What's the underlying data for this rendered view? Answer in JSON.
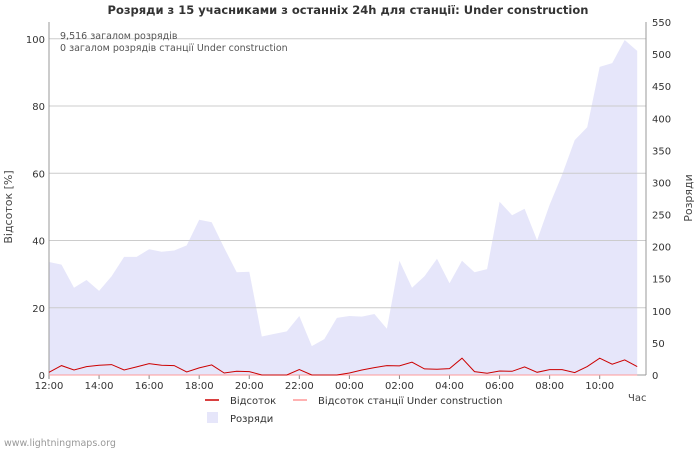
{
  "chart_data": {
    "type": "area+line",
    "title": "Розряди з 15 учасниками з останніх 24h для станції: Under construction",
    "annotations": [
      "9,516 загалом розрядів",
      "0 загалом розрядів станції Under construction"
    ],
    "ylabel_left": "Відсоток  [%]",
    "ylabel_right": "Розряди",
    "xlabel": "Час",
    "ylim_left": [
      0,
      105
    ],
    "ylim_right": [
      0,
      550
    ],
    "left_ticks": [
      "0",
      "20",
      "40",
      "60",
      "80",
      "100"
    ],
    "right_ticks": [
      "0",
      "50",
      "100",
      "150",
      "200",
      "250",
      "300",
      "350",
      "400",
      "450",
      "500",
      "550"
    ],
    "x_ticks": [
      "12:00",
      "14:00",
      "16:00",
      "18:00",
      "20:00",
      "22:00",
      "00:00",
      "02:00",
      "04:00",
      "06:00",
      "08:00",
      "10:00"
    ],
    "x_hours": [
      0,
      0.5,
      1,
      1.5,
      2,
      2.5,
      3,
      3.5,
      4,
      4.5,
      5,
      5.5,
      6,
      6.5,
      7,
      7.5,
      8,
      8.5,
      9,
      9.5,
      10,
      10.5,
      11,
      11.5,
      12,
      12.5,
      13,
      13.5,
      14,
      14.5,
      15,
      15.5,
      16,
      16.5,
      17,
      17.5,
      18,
      18.5,
      19,
      19.5,
      20,
      20.5,
      21,
      21.5,
      22,
      22.5,
      23,
      23.5
    ],
    "series": [
      {
        "name": "Розряди",
        "axis": "right",
        "style": "area",
        "color": "#e6e6fa",
        "values": [
          176,
          172,
          136,
          148,
          131,
          154,
          184,
          184,
          196,
          192,
          194,
          202,
          242,
          238,
          198,
          160,
          161,
          60,
          64,
          68,
          92,
          45,
          56,
          89,
          92,
          91,
          95,
          72,
          178,
          136,
          154,
          181,
          143,
          178,
          160,
          165,
          270,
          249,
          259,
          210,
          265,
          312,
          366,
          386,
          480,
          486,
          522,
          505
        ]
      },
      {
        "name": "Відсоток",
        "axis": "left",
        "style": "line",
        "color": "#cc0000",
        "values": [
          0.8,
          2.8,
          1.5,
          2.5,
          2.9,
          3.1,
          1.5,
          2.4,
          3.4,
          2.9,
          2.8,
          0.9,
          2.1,
          3.0,
          0.6,
          1.1,
          1.0,
          0.0,
          0.0,
          0.0,
          1.6,
          0.0,
          0.0,
          0.0,
          0.6,
          1.5,
          2.2,
          2.8,
          2.7,
          3.8,
          1.8,
          1.7,
          1.9,
          5.0,
          1.0,
          0.5,
          1.2,
          1.1,
          2.4,
          0.8,
          1.6,
          1.6,
          0.7,
          2.5,
          5.0,
          3.2,
          4.5,
          2.5
        ]
      },
      {
        "name": "Відсоток станції Under construction",
        "axis": "left",
        "style": "line",
        "color": "#ff9999",
        "values": [
          0,
          0,
          0,
          0,
          0,
          0,
          0,
          0,
          0,
          0,
          0,
          0,
          0,
          0,
          0,
          0,
          0,
          0,
          0,
          0,
          0,
          0,
          0,
          0,
          0,
          0,
          0,
          0,
          0,
          0,
          0,
          0,
          0,
          0,
          0,
          0,
          0,
          0,
          0,
          0,
          0,
          0,
          0,
          0,
          0,
          0,
          0,
          0
        ]
      }
    ],
    "legend": [
      {
        "label": "Відсоток",
        "color": "#cc0000",
        "kind": "line"
      },
      {
        "label": "Відсоток станції Under construction",
        "color": "#ff9999",
        "kind": "line"
      },
      {
        "label": "Розряди",
        "color": "#e6e6fa",
        "kind": "area"
      }
    ]
  },
  "footer": {
    "credit": "www.lightningmaps.org"
  }
}
